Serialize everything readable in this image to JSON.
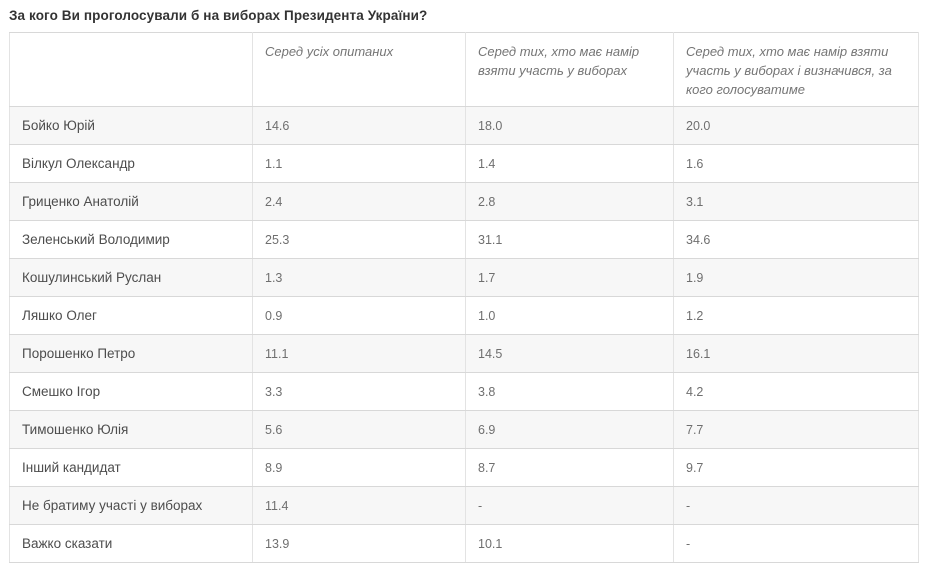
{
  "page": {
    "title": "За кого Ви проголосували б на виборах Президента України?"
  },
  "table": {
    "headers": [
      "",
      "Серед усіх опитаних",
      "Серед тих, хто має намір взяти участь у виборах",
      "Серед тих, хто має намір взяти участь у виборах і визначився, за кого голосуватиме"
    ],
    "rows": [
      {
        "label": "Бойко Юрій",
        "values": [
          "14.6",
          "18.0",
          "20.0"
        ]
      },
      {
        "label": "Вілкул Олександр",
        "values": [
          "1.1",
          "1.4",
          "1.6"
        ]
      },
      {
        "label": "Гриценко Анатолій",
        "values": [
          "2.4",
          "2.8",
          "3.1"
        ]
      },
      {
        "label": "Зеленський Володимир",
        "values": [
          "25.3",
          "31.1",
          "34.6"
        ]
      },
      {
        "label": "Кошулинський Руслан",
        "values": [
          "1.3",
          "1.7",
          "1.9"
        ]
      },
      {
        "label": "Ляшко Олег",
        "values": [
          "0.9",
          "1.0",
          "1.2"
        ]
      },
      {
        "label": "Порошенко Петро",
        "values": [
          "11.1",
          "14.5",
          "16.1"
        ]
      },
      {
        "label": "Смешко Ігор",
        "values": [
          "3.3",
          "3.8",
          "4.2"
        ]
      },
      {
        "label": "Тимошенко Юлія",
        "values": [
          "5.6",
          "6.9",
          "7.7"
        ]
      },
      {
        "label": "Інший кандидат",
        "values": [
          "8.9",
          "8.7",
          "9.7"
        ]
      },
      {
        "label": "Не братиму участі у виборах",
        "values": [
          "11.4",
          "-",
          "-"
        ]
      },
      {
        "label": "Важко сказати",
        "values": [
          "13.9",
          "10.1",
          "-"
        ]
      }
    ]
  },
  "colors": {
    "stripe_row_bg": "#f7f7f7",
    "row_border": "#d8d8d8",
    "column_border": "#e3e3e3",
    "title_text": "#333333",
    "name_text": "#4d4d4d",
    "value_text": "#6f6f6f",
    "header_text": "#757575"
  }
}
